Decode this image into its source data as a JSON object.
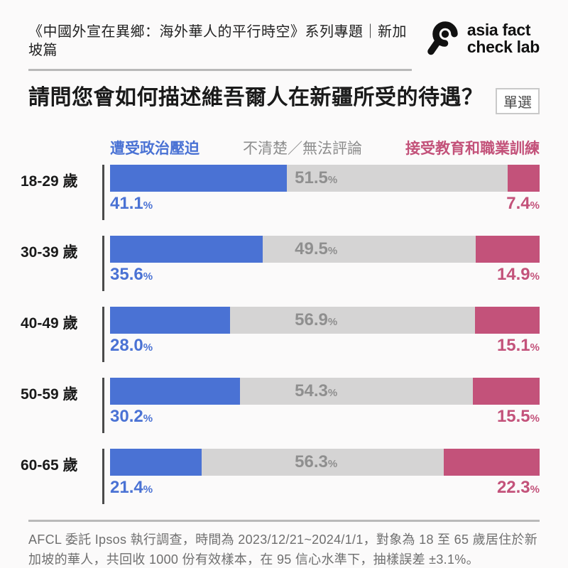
{
  "header": {
    "series_title": "《中國外宣在異鄉：海外華人的平行時空》系列專題｜新加坡篇",
    "logo": {
      "icon": "magnifier-eye-icon",
      "line1": "asia fact",
      "line2": "check lab"
    }
  },
  "question": {
    "title": "請問您會如何描述維吾爾人在新疆所受的待遇？",
    "badge": "單選"
  },
  "legend": [
    {
      "label": "遭受政治壓迫",
      "color": "#4a72d4"
    },
    {
      "label": "不清楚／無法評論",
      "color": "#8d8d8d"
    },
    {
      "label": "接受教育和職業訓練",
      "color": "#c3527a"
    }
  ],
  "chart_data": {
    "type": "bar",
    "orientation": "horizontal",
    "stacked": true,
    "unit": "%",
    "xlim": [
      0,
      100
    ],
    "title": "請問您會如何描述維吾爾人在新疆所受的待遇？",
    "categories": [
      "18-29 歲",
      "30-39 歲",
      "40-49 歲",
      "50-59 歲",
      "60-65 歲"
    ],
    "series": [
      {
        "name": "遭受政治壓迫",
        "color": "#4a72d4",
        "values": [
          41.1,
          35.6,
          28.0,
          30.2,
          21.4
        ]
      },
      {
        "name": "不清楚／無法評論",
        "color": "#d5d4d4",
        "values": [
          51.5,
          49.5,
          56.9,
          54.3,
          56.3
        ]
      },
      {
        "name": "接受教育和職業訓練",
        "color": "#c3527a",
        "values": [
          7.4,
          14.9,
          15.1,
          15.5,
          22.3
        ]
      }
    ],
    "legend_position": "top",
    "grid": false
  },
  "footer": {
    "text": "AFCL 委託 Ipsos 執行調查，時間為 2023/12/21~2024/1/1，對象為 18 至 65 歲居住於新加坡的華人，共回收 1000 份有效樣本，在 95 信心水準下，抽樣誤差 ±3.1%。"
  },
  "theme": {
    "blue": "#4a72d4",
    "gray_bar": "#d5d4d4",
    "pink": "#c3527a",
    "background": "#fbfafa",
    "divider": "#b9b9b9",
    "axis_line": "#4a4a4a"
  }
}
